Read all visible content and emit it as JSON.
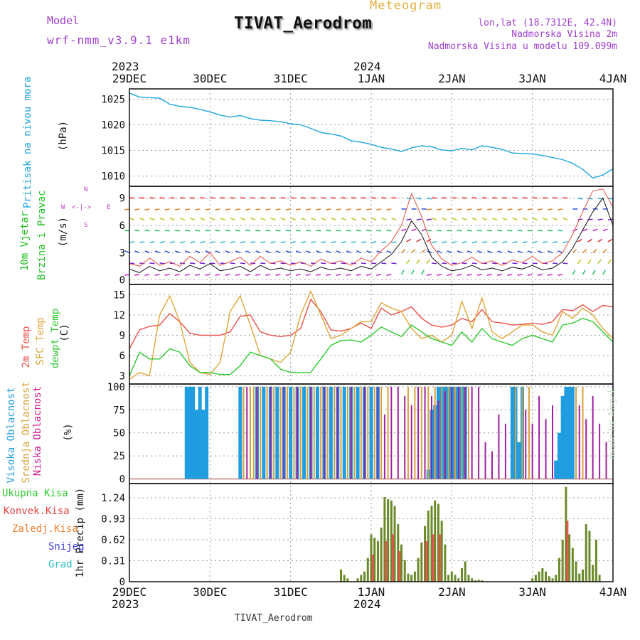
{
  "header": {
    "model_label": "Model",
    "model_name": "wrf-nmm_v3.9.1 e1km",
    "title": "TIVAT_Aerodrom",
    "subtitle": "Meteogram",
    "lonlat": "lon,lat (18.7312E, 42.4N)",
    "altitude": "Nadmorska Visina 2m",
    "model_altitude": "Nadmorska Visina u modelu 109.099m",
    "footer_station": "TIVAT_Aerodrom",
    "credit": "made by Angel"
  },
  "time_axis": {
    "top_year_left": "2023",
    "top_year_mid": "2024",
    "bottom_year_left": "2023",
    "bottom_year_mid": "2024",
    "day_labels": [
      "29DEC",
      "30DEC",
      "31DEC",
      "1JAN",
      "2JAN",
      "3JAN",
      "4JAN"
    ]
  },
  "panels": {
    "pressure": {
      "label": "Pritisak na nivou mora",
      "unit": "(hPa)"
    },
    "wind": {
      "label1": "10m Vjetar",
      "label2": "Brzina i Pravac",
      "unit": "(m/s)",
      "compass_n": "N",
      "compass_s": "S",
      "compass_w": "W",
      "compass_e": "E",
      "compass_arrows": "<-|->"
    },
    "temp": {
      "label1": "2m Temp",
      "label2": "SFC Temp",
      "label3": "dewpt Temp",
      "unit": "(C)"
    },
    "cloud": {
      "label1": "Visoka Oblacnost",
      "label2": "Srednja Oblacnost",
      "label3": "Niska Oblacnost",
      "unit": "(%)"
    },
    "precip": {
      "label1": "Ukupna Kisa",
      "label2": "Konvek.Kisa",
      "label3": "Zaledj.Kisa",
      "label4": "Snijeg",
      "label5": "Grad",
      "unit": "1hr Precip (mm)"
    }
  },
  "colors": {
    "pressure": "#1fa5e0",
    "t2m": "#e8504a",
    "tsfc": "#e0a63a",
    "dewpt": "#2fc92f",
    "cloud_high": "#1f9de0",
    "cloud_mid": "#d9a23a",
    "cloud_low": "#a0209f",
    "precip_total": "#2fc92f",
    "precip_conv": "#e84040",
    "precip_frozen": "#f08030",
    "precip_snow": "#4040e0",
    "precip_hail": "#30c0c0",
    "header_purple": "#a040d0",
    "header_gold": "#e0b040",
    "wind_label": "#20c020",
    "compass": "#c040c0"
  },
  "chart_data": [
    {
      "type": "line",
      "name": "pressure",
      "ylabel": "Pritisak na nivou mora (hPa)",
      "ylim": [
        1008,
        1027
      ],
      "yticks": [
        1010,
        1015,
        1020,
        1025
      ],
      "x_hours": [
        0,
        3,
        6,
        9,
        12,
        15,
        18,
        21,
        24,
        27,
        30,
        33,
        36,
        39,
        42,
        45,
        48,
        51,
        54,
        57,
        60,
        63,
        66,
        69,
        72,
        75,
        78,
        81,
        84,
        87,
        90,
        93,
        96,
        99,
        102,
        105,
        108,
        111,
        114,
        117,
        120,
        123,
        126,
        129,
        132,
        135,
        138,
        141,
        144
      ],
      "values": [
        1026.2,
        1025.4,
        1025.3,
        1025.2,
        1024.0,
        1023.6,
        1023.4,
        1023.0,
        1022.5,
        1021.9,
        1021.5,
        1021.8,
        1021.2,
        1020.9,
        1020.8,
        1020.6,
        1020.2,
        1020.0,
        1019.3,
        1018.5,
        1018.2,
        1017.8,
        1016.9,
        1016.6,
        1016.2,
        1015.6,
        1015.3,
        1014.8,
        1015.5,
        1015.9,
        1015.7,
        1015.1,
        1014.9,
        1015.4,
        1015.1,
        1015.9,
        1015.6,
        1015.2,
        1014.5,
        1014.4,
        1014.3,
        1014.0,
        1013.6,
        1013.2,
        1012.5,
        1011.3,
        1009.6,
        1010.2,
        1011.4
      ]
    },
    {
      "type": "line",
      "name": "wind",
      "ylabel": "10m Vjetar Brzina i Pravac (m/s)",
      "ylim": [
        -0.5,
        10.3
      ],
      "yticks": [
        0,
        3,
        6,
        9
      ],
      "x_hours": [
        0,
        3,
        6,
        9,
        12,
        15,
        18,
        21,
        24,
        27,
        30,
        33,
        36,
        39,
        42,
        45,
        48,
        51,
        54,
        57,
        60,
        63,
        66,
        69,
        72,
        75,
        78,
        81,
        84,
        87,
        90,
        93,
        96,
        99,
        102,
        105,
        108,
        111,
        114,
        117,
        120,
        123,
        126,
        129,
        132,
        135,
        138,
        141,
        144
      ],
      "speed": [
        1.2,
        0.8,
        1.5,
        1.0,
        1.3,
        0.9,
        1.6,
        1.2,
        1.8,
        1.0,
        1.2,
        1.5,
        0.9,
        1.6,
        1.1,
        1.3,
        1.0,
        1.2,
        0.9,
        1.4,
        1.1,
        1.3,
        1.0,
        1.5,
        1.2,
        2.0,
        2.8,
        4.2,
        6.5,
        5.0,
        2.5,
        1.5,
        1.0,
        1.2,
        1.6,
        1.1,
        1.3,
        1.0,
        1.4,
        1.2,
        1.6,
        1.1,
        1.3,
        2.0,
        3.5,
        5.5,
        7.5,
        9.0,
        6.0
      ],
      "gust": [
        1.8,
        1.5,
        2.4,
        1.6,
        2.0,
        1.5,
        2.6,
        1.9,
        3.0,
        1.6,
        2.0,
        2.5,
        1.6,
        2.6,
        1.8,
        2.1,
        1.6,
        2.0,
        1.5,
        2.3,
        1.8,
        2.1,
        1.6,
        2.4,
        2.0,
        3.2,
        4.2,
        6.0,
        9.5,
        7.0,
        3.8,
        2.3,
        1.6,
        1.9,
        2.5,
        1.8,
        2.1,
        1.6,
        2.2,
        1.9,
        2.6,
        1.8,
        2.1,
        3.0,
        5.0,
        7.5,
        9.8,
        10.0,
        8.0
      ]
    },
    {
      "type": "line",
      "name": "temperature",
      "ylabel": "2m Temp / SFC Temp / dewpt Temp (C)",
      "ylim": [
        1.8,
        16.5
      ],
      "yticks": [
        3,
        6,
        9,
        12,
        15
      ],
      "x_hours": [
        0,
        3,
        6,
        9,
        12,
        15,
        18,
        21,
        24,
        27,
        30,
        33,
        36,
        39,
        42,
        45,
        48,
        51,
        54,
        57,
        60,
        63,
        66,
        69,
        72,
        75,
        78,
        81,
        84,
        87,
        90,
        93,
        96,
        99,
        102,
        105,
        108,
        111,
        114,
        117,
        120,
        123,
        126,
        129,
        132,
        135,
        138,
        141,
        144
      ],
      "series": [
        {
          "name": "2m Temp",
          "values": [
            7.0,
            9.8,
            10.3,
            10.5,
            12.2,
            11.0,
            9.3,
            9.0,
            9.0,
            9.0,
            9.5,
            11.8,
            12.0,
            9.5,
            9.0,
            8.8,
            9.0,
            10.0,
            14.3,
            12.5,
            9.8,
            9.6,
            10.0,
            10.8,
            10.0,
            13.0,
            12.0,
            12.5,
            13.2,
            11.5,
            10.5,
            10.2,
            10.5,
            11.5,
            11.0,
            12.8,
            11.0,
            10.8,
            10.5,
            10.6,
            10.8,
            10.6,
            11.0,
            12.8,
            12.6,
            13.5,
            12.5,
            13.4,
            13.2
          ]
        },
        {
          "name": "SFC Temp",
          "values": [
            2.5,
            3.5,
            3.0,
            12.0,
            14.8,
            11.0,
            5.0,
            3.5,
            3.2,
            5.0,
            12.5,
            14.8,
            10.5,
            6.0,
            5.5,
            5.0,
            6.5,
            12.0,
            15.5,
            12.0,
            8.5,
            9.0,
            10.0,
            11.0,
            11.0,
            13.8,
            13.0,
            12.5,
            10.0,
            8.5,
            9.0,
            8.0,
            9.0,
            14.0,
            10.0,
            14.5,
            9.5,
            8.5,
            9.5,
            10.5,
            10.5,
            9.5,
            9.0,
            12.5,
            11.5,
            13.0,
            12.0,
            10.0,
            8.5
          ]
        },
        {
          "name": "dewpt Temp",
          "values": [
            3.0,
            6.5,
            5.5,
            5.5,
            7.0,
            6.5,
            4.5,
            3.5,
            3.5,
            3.2,
            3.2,
            4.5,
            6.5,
            6.0,
            5.5,
            4.0,
            3.5,
            3.5,
            3.5,
            5.5,
            7.5,
            8.2,
            8.3,
            8.0,
            9.0,
            10.2,
            9.5,
            8.8,
            10.5,
            9.5,
            8.5,
            8.0,
            7.5,
            9.5,
            8.0,
            10.0,
            8.5,
            8.0,
            7.5,
            8.5,
            9.0,
            8.5,
            8.0,
            10.5,
            10.8,
            11.5,
            11.0,
            9.5,
            8.0
          ]
        }
      ]
    },
    {
      "type": "bar",
      "name": "cloud",
      "ylabel": "Visoka / Srednja / Niska Oblacnost (%)",
      "ylim": [
        -5,
        103
      ],
      "yticks": [
        0,
        25,
        50,
        75,
        100
      ],
      "bar_hour_width": 0.55,
      "series": [
        {
          "name": "Visoka Oblacnost",
          "hours": [
            17,
            18,
            19,
            20,
            21,
            22,
            23,
            33,
            38,
            40,
            42,
            44,
            46,
            48,
            50,
            52,
            54,
            56,
            58,
            60,
            62,
            64,
            66,
            68,
            70,
            72,
            74,
            89,
            90,
            91,
            92,
            93,
            94,
            95,
            96,
            97,
            98,
            99,
            100,
            114,
            115,
            116,
            117,
            127,
            128,
            129,
            130,
            131,
            132
          ],
          "values": [
            100,
            100,
            100,
            75,
            100,
            75,
            100,
            100,
            100,
            100,
            100,
            100,
            100,
            100,
            100,
            100,
            100,
            100,
            100,
            100,
            100,
            100,
            100,
            100,
            100,
            100,
            100,
            10,
            75,
            80,
            100,
            100,
            100,
            100,
            100,
            100,
            100,
            100,
            100,
            100,
            100,
            40,
            100,
            20,
            50,
            90,
            100,
            100,
            100
          ]
        },
        {
          "name": "Srednja Oblacnost",
          "hours": [
            34,
            36,
            37,
            39,
            41,
            43,
            45,
            47,
            49,
            51,
            53,
            55,
            57,
            59,
            61,
            63,
            65,
            67,
            69,
            71,
            73,
            75,
            77,
            83,
            85,
            87,
            89,
            91,
            93,
            95,
            97,
            99,
            101,
            115,
            117,
            119,
            133,
            135
          ],
          "values": [
            100,
            100,
            100,
            100,
            100,
            100,
            100,
            100,
            100,
            100,
            100,
            100,
            100,
            100,
            100,
            100,
            100,
            100,
            100,
            100,
            100,
            100,
            100,
            100,
            100,
            100,
            100,
            100,
            100,
            100,
            100,
            100,
            100,
            100,
            100,
            100,
            100,
            100
          ]
        },
        {
          "name": "Niska Oblacnost",
          "hours": [
            35,
            38,
            42,
            46,
            50,
            54,
            58,
            62,
            66,
            70,
            74,
            76,
            78,
            80,
            82,
            84,
            86,
            88,
            90,
            92,
            94,
            96,
            98,
            100,
            102,
            104,
            106,
            108,
            110,
            112,
            118,
            120,
            122,
            124,
            126,
            134,
            136,
            138,
            140,
            142
          ],
          "values": [
            100,
            100,
            100,
            100,
            100,
            100,
            100,
            100,
            100,
            100,
            100,
            70,
            100,
            100,
            90,
            80,
            100,
            100,
            90,
            85,
            95,
            100,
            100,
            100,
            100,
            100,
            40,
            30,
            70,
            60,
            75,
            60,
            90,
            65,
            80,
            80,
            65,
            90,
            60,
            40
          ]
        }
      ]
    },
    {
      "type": "bar",
      "name": "precipitation",
      "ylabel": "1hr Precip (mm)",
      "ylim": [
        0,
        1.45
      ],
      "yticks": [
        0,
        0.31,
        0.62,
        0.93,
        1.24
      ],
      "ytick_labels": [
        "0",
        "0.31",
        "0.62",
        "0.93",
        "1.24"
      ],
      "bar_hour_width": 0.55,
      "series": [
        {
          "name": "Ukupna Kisa",
          "hours": [
            63,
            64,
            65,
            68,
            69,
            70,
            71,
            72,
            73,
            74,
            75,
            76,
            77,
            78,
            79,
            80,
            81,
            82,
            83,
            84,
            85,
            86,
            87,
            88,
            89,
            90,
            91,
            92,
            93,
            94,
            95,
            96,
            97,
            98,
            99,
            100,
            101,
            102,
            103,
            104,
            105,
            120,
            121,
            122,
            123,
            124,
            125,
            126,
            127,
            128,
            129,
            130,
            131,
            132,
            133,
            134,
            135,
            136,
            137,
            138,
            139,
            140
          ],
          "values": [
            0.18,
            0.1,
            0.05,
            0.05,
            0.1,
            0.15,
            0.35,
            0.7,
            0.65,
            0.6,
            0.8,
            1.25,
            1.22,
            1.2,
            1.12,
            0.85,
            0.55,
            0.32,
            0.12,
            0.1,
            0.15,
            0.35,
            0.58,
            0.82,
            1.05,
            1.12,
            1.2,
            1.15,
            0.9,
            0.55,
            0.1,
            0.15,
            0.1,
            0.05,
            0.2,
            0.3,
            0.1,
            0.05,
            0.02,
            0.03,
            0.02,
            0.05,
            0.1,
            0.15,
            0.2,
            0.15,
            0.08,
            0.05,
            0.1,
            0.35,
            0.62,
            1.4,
            0.7,
            0.5,
            0.3,
            0.12,
            0.18,
            0.85,
            0.75,
            0.25,
            0.62,
            0.1
          ]
        },
        {
          "name": "Konvek.Kisa",
          "hours": [
            72,
            76,
            78,
            80,
            88,
            90,
            92,
            130
          ],
          "values": [
            0.4,
            0.6,
            0.7,
            0.45,
            0.6,
            0.7,
            0.7,
            0.9
          ]
        },
        {
          "name": "Zaledj.Kisa",
          "hours": [],
          "values": []
        },
        {
          "name": "Snijeg",
          "hours": [],
          "values": []
        },
        {
          "name": "Grad",
          "hours": [],
          "values": []
        }
      ]
    }
  ]
}
